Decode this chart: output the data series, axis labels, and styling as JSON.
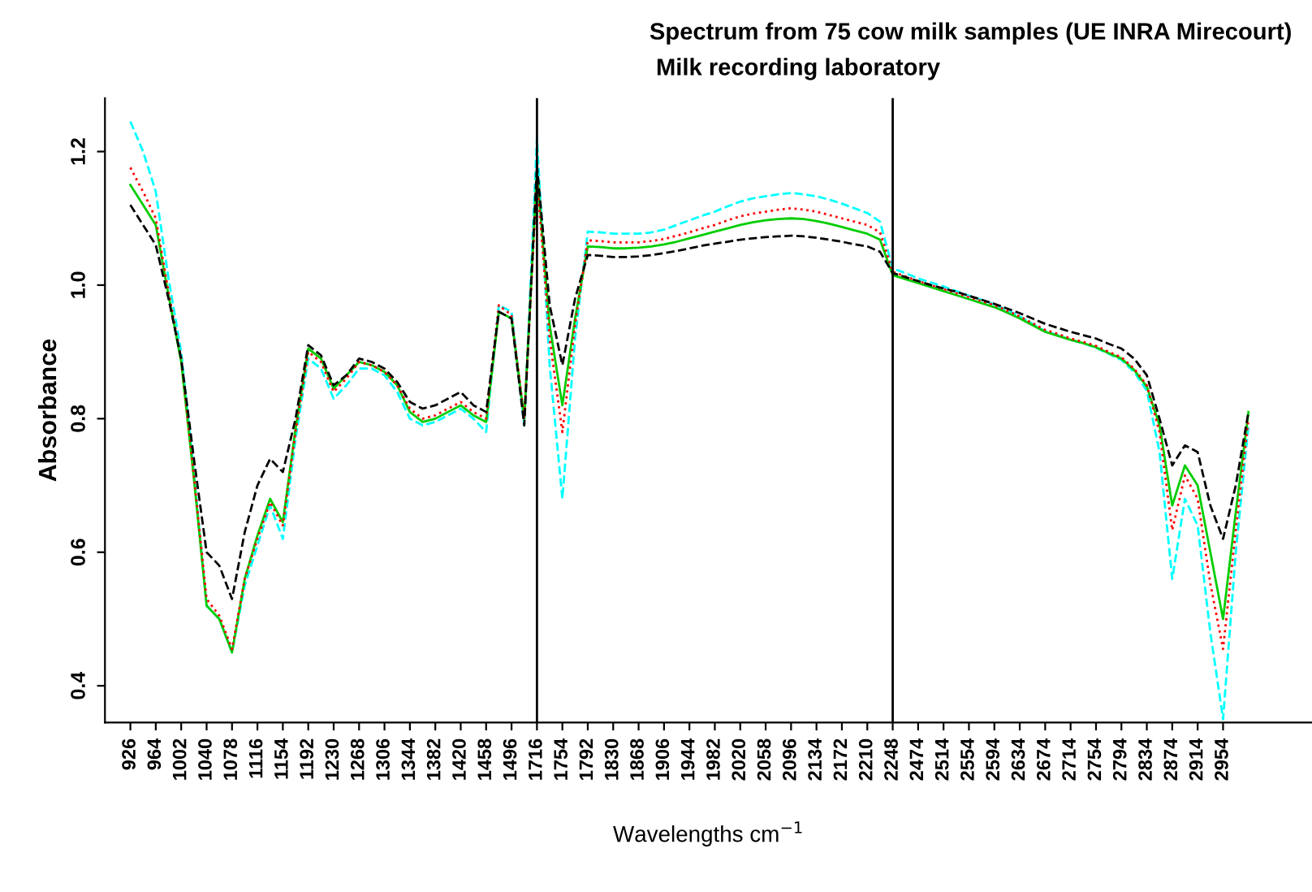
{
  "chart_data": {
    "type": "line",
    "title": "Spectrum from 75 cow milk samples (UE INRA Mirecourt)",
    "subtitle": "Milk recording laboratory",
    "xlabel": "Wavelengths cm$^{−1}$",
    "ylabel": "Absorbance",
    "categories": [
      "926",
      null,
      "964",
      null,
      "1002",
      null,
      "1040",
      null,
      "1078",
      null,
      "1116",
      null,
      "1154",
      null,
      "1192",
      null,
      "1230",
      null,
      "1268",
      null,
      "1306",
      null,
      "1344",
      null,
      "1382",
      null,
      "1420",
      null,
      "1458",
      null,
      "1496",
      null,
      "1716",
      null,
      "1754",
      null,
      "1792",
      null,
      "1830",
      null,
      "1868",
      null,
      "1906",
      null,
      "1944",
      null,
      "1982",
      null,
      "2020",
      null,
      "2058",
      null,
      "2096",
      null,
      "2134",
      null,
      "2172",
      null,
      "2210",
      null,
      "2248",
      null,
      "2474",
      null,
      "2514",
      null,
      "2554",
      null,
      "2594",
      null,
      "2634",
      null,
      "2674",
      null,
      "2714",
      null,
      "2754",
      null,
      "2794",
      null,
      "2834",
      null,
      "2874",
      null,
      "2914",
      null,
      "2954",
      null,
      null
    ],
    "series": [
      {
        "color": "#00ffff",
        "line_style": "dashed",
        "values": [
          1.245,
          1.2,
          1.14,
          1.01,
          0.9,
          0.72,
          0.52,
          0.5,
          0.45,
          0.55,
          0.61,
          0.67,
          0.62,
          0.77,
          0.89,
          0.875,
          0.83,
          0.85,
          0.875,
          0.875,
          0.865,
          0.84,
          0.8,
          0.79,
          0.795,
          0.805,
          0.815,
          0.8,
          0.78,
          0.97,
          0.96,
          0.79,
          1.22,
          0.88,
          0.68,
          0.92,
          1.08,
          1.079,
          1.077,
          1.077,
          1.077,
          1.079,
          1.083,
          1.09,
          1.097,
          1.104,
          1.11,
          1.118,
          1.125,
          1.13,
          1.133,
          1.136,
          1.138,
          1.136,
          1.133,
          1.128,
          1.122,
          1.115,
          1.108,
          1.095,
          1.025,
          1.018,
          1.01,
          1.004,
          0.998,
          0.991,
          0.984,
          0.978,
          0.971,
          0.963,
          0.953,
          0.942,
          0.931,
          0.925,
          0.918,
          0.913,
          0.906,
          0.897,
          0.888,
          0.87,
          0.842,
          0.75,
          0.56,
          0.68,
          0.64,
          0.48,
          0.35,
          0.6,
          0.79
        ]
      },
      {
        "color": "#00cd00",
        "line_style": "solid",
        "values": [
          1.15,
          1.12,
          1.09,
          0.985,
          0.885,
          0.71,
          0.52,
          0.5,
          0.45,
          0.56,
          0.625,
          0.68,
          0.645,
          0.785,
          0.905,
          0.89,
          0.845,
          0.865,
          0.885,
          0.88,
          0.87,
          0.85,
          0.81,
          0.795,
          0.8,
          0.81,
          0.82,
          0.805,
          0.795,
          0.96,
          0.95,
          0.8,
          1.17,
          0.94,
          0.82,
          0.95,
          1.058,
          1.057,
          1.055,
          1.055,
          1.056,
          1.058,
          1.061,
          1.065,
          1.07,
          1.075,
          1.08,
          1.085,
          1.09,
          1.094,
          1.097,
          1.099,
          1.1,
          1.099,
          1.096,
          1.092,
          1.087,
          1.082,
          1.077,
          1.068,
          1.015,
          1.009,
          1.003,
          0.997,
          0.991,
          0.985,
          0.979,
          0.973,
          0.967,
          0.959,
          0.95,
          0.94,
          0.93,
          0.924,
          0.918,
          0.913,
          0.907,
          0.898,
          0.89,
          0.873,
          0.848,
          0.79,
          0.67,
          0.73,
          0.7,
          0.6,
          0.5,
          0.66,
          0.81
        ]
      },
      {
        "color": "#ff0000",
        "line_style": "dotted",
        "values": [
          1.176,
          1.14,
          1.1,
          0.99,
          0.89,
          0.715,
          0.53,
          0.505,
          0.455,
          0.56,
          0.62,
          0.675,
          0.64,
          0.78,
          0.9,
          0.885,
          0.84,
          0.86,
          0.885,
          0.88,
          0.87,
          0.85,
          0.815,
          0.8,
          0.805,
          0.815,
          0.825,
          0.81,
          0.8,
          0.97,
          0.955,
          0.8,
          1.16,
          0.92,
          0.78,
          0.94,
          1.067,
          1.066,
          1.064,
          1.064,
          1.064,
          1.066,
          1.069,
          1.074,
          1.079,
          1.085,
          1.09,
          1.097,
          1.103,
          1.107,
          1.11,
          1.113,
          1.115,
          1.113,
          1.11,
          1.105,
          1.1,
          1.095,
          1.09,
          1.079,
          1.02,
          1.013,
          1.006,
          1.0,
          0.994,
          0.988,
          0.982,
          0.976,
          0.97,
          0.962,
          0.953,
          0.943,
          0.933,
          0.927,
          0.92,
          0.915,
          0.909,
          0.9,
          0.892,
          0.875,
          0.85,
          0.78,
          0.633,
          0.715,
          0.68,
          0.553,
          0.455,
          0.633,
          0.8
        ]
      },
      {
        "color": "#000000",
        "line_style": "dashed",
        "values": [
          1.12,
          1.09,
          1.06,
          0.98,
          0.89,
          0.74,
          0.6,
          0.58,
          0.53,
          0.63,
          0.7,
          0.74,
          0.72,
          0.8,
          0.91,
          0.895,
          0.85,
          0.865,
          0.89,
          0.885,
          0.875,
          0.855,
          0.825,
          0.815,
          0.82,
          0.83,
          0.84,
          0.82,
          0.81,
          0.96,
          0.95,
          0.79,
          1.18,
          0.97,
          0.88,
          0.98,
          1.045,
          1.044,
          1.042,
          1.042,
          1.043,
          1.045,
          1.048,
          1.051,
          1.055,
          1.059,
          1.062,
          1.065,
          1.068,
          1.07,
          1.072,
          1.073,
          1.074,
          1.073,
          1.071,
          1.068,
          1.065,
          1.061,
          1.058,
          1.05,
          1.018,
          1.012,
          1.006,
          1.0,
          0.995,
          0.99,
          0.984,
          0.978,
          0.972,
          0.965,
          0.958,
          0.95,
          0.942,
          0.936,
          0.93,
          0.925,
          0.92,
          0.912,
          0.905,
          0.89,
          0.865,
          0.8,
          0.73,
          0.76,
          0.75,
          0.67,
          0.62,
          0.7,
          0.81
        ]
      }
    ],
    "ylim": [
      0.345,
      1.28
    ],
    "yticks": [
      0.4,
      0.6,
      0.8,
      {
        "value": 1.0,
        "label": "1.0"
      },
      1.2
    ],
    "ref_lines": [
      {
        "axis": "x",
        "value": "1716",
        "color": "#000000"
      },
      {
        "axis": "x",
        "value": "2248",
        "color": "#000000"
      }
    ],
    "grid": false,
    "legend": false,
    "marker": "none"
  }
}
